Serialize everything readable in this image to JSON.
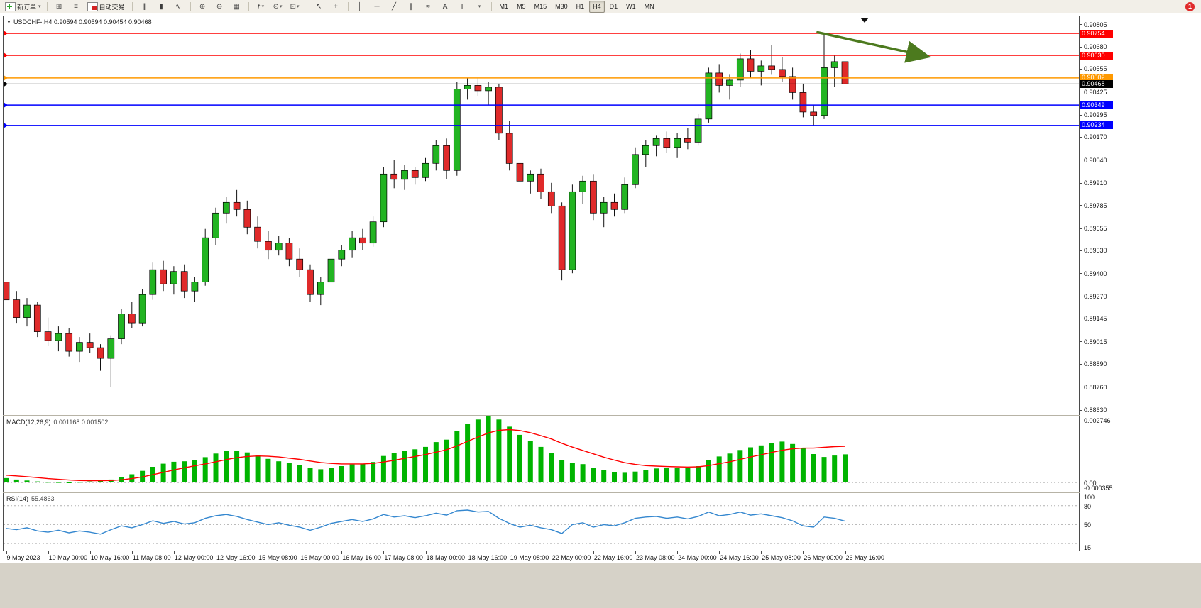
{
  "toolbar": {
    "new_order_label": "新订单",
    "autotrading_label": "自动交易",
    "badge_count": "1",
    "timeframes": [
      "M1",
      "M5",
      "M15",
      "M30",
      "H1",
      "H4",
      "D1",
      "W1",
      "MN"
    ],
    "active_timeframe": "H4",
    "icons": {
      "caret": "▾",
      "new_chart": "⊞",
      "profiles": "≡",
      "bar_chart": "|||",
      "candlestick_chart": "▮",
      "line_chart": "∿",
      "zoom_in": "⊕",
      "zoom_out": "⊖",
      "tile_windows": "▦",
      "indicators": "ƒ",
      "periods": "⊙",
      "templates": "⊡",
      "cursor": "↖",
      "crosshair": "+",
      "vertical_line": "│",
      "horizontal_line": "─",
      "trendline": "╱",
      "channel": "∥",
      "fibonacci": "≈",
      "text": "A",
      "text_label": "T",
      "objects_list": "▾"
    }
  },
  "chart": {
    "collapse_marker": "▼",
    "title": "USDCHF-,H4 0.90594 0.90594 0.90454 0.90468"
  },
  "chart_data": {
    "type": "candlestick",
    "symbol": "USDCHF-",
    "timeframe": "H4",
    "current_bar": {
      "open": 0.90594,
      "high": 0.90594,
      "low": 0.90454,
      "close": 0.90468
    },
    "y_range": [
      0.886,
      0.9085
    ],
    "price_axis_labels": [
      "0.90805",
      "0.90680",
      "0.90555",
      "0.90425",
      "0.90295",
      "0.90170",
      "0.90040",
      "0.89910",
      "0.89785",
      "0.89655",
      "0.89530",
      "0.89400",
      "0.89270",
      "0.89145",
      "0.89015",
      "0.88890",
      "0.88760",
      "0.88630"
    ],
    "time_labels": [
      "9 May 2023",
      "10 May 00:00",
      "10 May 16:00",
      "11 May 08:00",
      "12 May 00:00",
      "12 May 16:00",
      "15 May 08:00",
      "16 May 00:00",
      "16 May 16:00",
      "17 May 08:00",
      "18 May 00:00",
      "18 May 16:00",
      "19 May 08:00",
      "22 May 00:00",
      "22 May 16:00",
      "23 May 08:00",
      "24 May 00:00",
      "24 May 16:00",
      "25 May 08:00",
      "26 May 00:00",
      "26 May 16:00"
    ],
    "label_every_n_candles": 4,
    "colors": {
      "bull": "#22b422",
      "bear": "#e02a2a",
      "wick": "#111111"
    },
    "candles": [
      [
        0.8935,
        0.8948,
        0.8921,
        0.8925
      ],
      [
        0.8925,
        0.893,
        0.8912,
        0.8915
      ],
      [
        0.8915,
        0.8926,
        0.891,
        0.8922
      ],
      [
        0.8922,
        0.8924,
        0.8904,
        0.8907
      ],
      [
        0.8907,
        0.8915,
        0.8899,
        0.8902
      ],
      [
        0.8902,
        0.891,
        0.8896,
        0.8906
      ],
      [
        0.8906,
        0.8909,
        0.8893,
        0.8896
      ],
      [
        0.8896,
        0.8904,
        0.889,
        0.8901
      ],
      [
        0.8901,
        0.8906,
        0.8895,
        0.8898
      ],
      [
        0.8898,
        0.89,
        0.8885,
        0.8892
      ],
      [
        0.8892,
        0.8905,
        0.8876,
        0.8903
      ],
      [
        0.8903,
        0.892,
        0.89,
        0.8917
      ],
      [
        0.8917,
        0.8924,
        0.8909,
        0.8912
      ],
      [
        0.8912,
        0.8931,
        0.891,
        0.8928
      ],
      [
        0.8928,
        0.8946,
        0.8925,
        0.8942
      ],
      [
        0.8942,
        0.8947,
        0.893,
        0.8934
      ],
      [
        0.8934,
        0.8944,
        0.8928,
        0.8941
      ],
      [
        0.8941,
        0.8945,
        0.8926,
        0.893
      ],
      [
        0.893,
        0.8938,
        0.8924,
        0.8935
      ],
      [
        0.8935,
        0.8965,
        0.8933,
        0.896
      ],
      [
        0.896,
        0.8977,
        0.8956,
        0.8974
      ],
      [
        0.8974,
        0.8983,
        0.8968,
        0.898
      ],
      [
        0.898,
        0.8987,
        0.8972,
        0.8976
      ],
      [
        0.8976,
        0.8981,
        0.8962,
        0.8966
      ],
      [
        0.8966,
        0.8972,
        0.8954,
        0.8958
      ],
      [
        0.8958,
        0.8964,
        0.8948,
        0.8953
      ],
      [
        0.8953,
        0.8961,
        0.895,
        0.8957
      ],
      [
        0.8957,
        0.896,
        0.8944,
        0.8948
      ],
      [
        0.8948,
        0.8954,
        0.8938,
        0.8942
      ],
      [
        0.8942,
        0.8945,
        0.8924,
        0.8928
      ],
      [
        0.8928,
        0.8938,
        0.8922,
        0.8935
      ],
      [
        0.8935,
        0.8952,
        0.8933,
        0.8948
      ],
      [
        0.8948,
        0.8956,
        0.8944,
        0.8953
      ],
      [
        0.8953,
        0.8964,
        0.8949,
        0.896
      ],
      [
        0.896,
        0.8965,
        0.8953,
        0.8957
      ],
      [
        0.8957,
        0.8972,
        0.8955,
        0.8969
      ],
      [
        0.8969,
        0.9,
        0.8966,
        0.8996
      ],
      [
        0.8996,
        0.9004,
        0.8988,
        0.8993
      ],
      [
        0.8993,
        0.9001,
        0.8987,
        0.8998
      ],
      [
        0.8998,
        0.9,
        0.899,
        0.8994
      ],
      [
        0.8994,
        0.9005,
        0.8992,
        0.9002
      ],
      [
        0.9002,
        0.9015,
        0.8998,
        0.9012
      ],
      [
        0.9012,
        0.9016,
        0.8993,
        0.8998
      ],
      [
        0.8998,
        0.9048,
        0.8995,
        0.9044
      ],
      [
        0.9044,
        0.905,
        0.9038,
        0.9046
      ],
      [
        0.9046,
        0.905,
        0.904,
        0.9043
      ],
      [
        0.9043,
        0.9048,
        0.9035,
        0.9045
      ],
      [
        0.9045,
        0.9047,
        0.9015,
        0.9019
      ],
      [
        0.9019,
        0.9026,
        0.8998,
        0.9002
      ],
      [
        0.9002,
        0.9008,
        0.8988,
        0.8992
      ],
      [
        0.8992,
        0.8998,
        0.8985,
        0.8996
      ],
      [
        0.8996,
        0.8999,
        0.8982,
        0.8986
      ],
      [
        0.8986,
        0.8991,
        0.8974,
        0.8978
      ],
      [
        0.8978,
        0.898,
        0.8936,
        0.8942
      ],
      [
        0.8942,
        0.899,
        0.894,
        0.8986
      ],
      [
        0.8986,
        0.8995,
        0.8979,
        0.8992
      ],
      [
        0.8992,
        0.8996,
        0.897,
        0.8974
      ],
      [
        0.8974,
        0.8983,
        0.8966,
        0.898
      ],
      [
        0.898,
        0.8985,
        0.8972,
        0.8976
      ],
      [
        0.8976,
        0.8994,
        0.8974,
        0.899
      ],
      [
        0.899,
        0.9011,
        0.8988,
        0.9007
      ],
      [
        0.9007,
        0.9015,
        0.9,
        0.9012
      ],
      [
        0.9012,
        0.9018,
        0.9006,
        0.9016
      ],
      [
        0.9016,
        0.902,
        0.9008,
        0.9011
      ],
      [
        0.9011,
        0.9019,
        0.9005,
        0.9016
      ],
      [
        0.9016,
        0.9022,
        0.901,
        0.9014
      ],
      [
        0.9014,
        0.903,
        0.9012,
        0.9027
      ],
      [
        0.9027,
        0.9056,
        0.9025,
        0.9053
      ],
      [
        0.9053,
        0.9058,
        0.9042,
        0.9046
      ],
      [
        0.9046,
        0.9052,
        0.9038,
        0.9049
      ],
      [
        0.9049,
        0.9064,
        0.9045,
        0.9061
      ],
      [
        0.9061,
        0.9066,
        0.905,
        0.9054
      ],
      [
        0.9054,
        0.906,
        0.9046,
        0.9057
      ],
      [
        0.9057,
        0.90687,
        0.9052,
        0.9055
      ],
      [
        0.9055,
        0.9062,
        0.9048,
        0.9051
      ],
      [
        0.9051,
        0.9056,
        0.9038,
        0.9042
      ],
      [
        0.9042,
        0.9047,
        0.9028,
        0.9031
      ],
      [
        0.9031,
        0.9035,
        0.90234,
        0.9029
      ],
      [
        0.9029,
        0.90754,
        0.9027,
        0.9056
      ],
      [
        0.9056,
        0.9063,
        0.9045,
        0.90594
      ],
      [
        0.90594,
        0.90594,
        0.90454,
        0.90468
      ]
    ],
    "hlines": [
      {
        "name": "resistance-line-upper",
        "price": 0.90754,
        "label": "0.90754",
        "color": "#ff0000"
      },
      {
        "name": "resistance-line-lower",
        "price": 0.9063,
        "label": "0.90630",
        "color": "#ff0000"
      },
      {
        "name": "pivot-line-orange",
        "price": 0.90502,
        "label": "0.90502",
        "color": "#ff9900"
      },
      {
        "name": "current-price-line",
        "price": 0.90468,
        "label": "0.90468",
        "color": "#000000",
        "current": true
      },
      {
        "name": "support-line-upper",
        "price": 0.90349,
        "label": "0.90349",
        "color": "#0000ff"
      },
      {
        "name": "support-line-lower",
        "price": 0.90234,
        "label": "0.90234",
        "color": "#0000ff"
      }
    ],
    "trend_arrow": {
      "x1_frac": 0.756,
      "price1": 0.90761,
      "x2_frac": 0.858,
      "price2": 0.90625,
      "color": "#4c7a1e"
    },
    "indicators": {
      "macd": {
        "label": "MACD(12,26,9)",
        "values_label": "0.001168 0.001502",
        "y_range": [
          -0.000355,
          0.002746
        ],
        "axis_labels": [
          {
            "text": "0.002746",
            "value": 0.002746
          },
          {
            "text": "0.00",
            "value": 0
          },
          {
            "text": "-0.000355",
            "value": -0.000355
          }
        ],
        "histogram_color": "#00b400",
        "signal_color": "#ff0000",
        "main": [
          0.00018,
          0.00012,
          8e-05,
          4e-05,
          2e-05,
          1e-05,
          0.0,
          2e-05,
          4e-05,
          6e-05,
          0.00012,
          0.00022,
          0.00034,
          0.00048,
          0.00065,
          0.00078,
          0.00086,
          0.00088,
          0.00092,
          0.00105,
          0.0012,
          0.0013,
          0.00132,
          0.00125,
          0.00112,
          0.00098,
          0.00088,
          0.0008,
          0.00072,
          0.0006,
          0.00055,
          0.0006,
          0.00068,
          0.00075,
          0.00078,
          0.00085,
          0.0011,
          0.00122,
          0.00132,
          0.00138,
          0.00148,
          0.00168,
          0.00178,
          0.00215,
          0.00245,
          0.00262,
          0.00275,
          0.00262,
          0.00232,
          0.00198,
          0.00172,
          0.00148,
          0.00122,
          0.00092,
          0.00082,
          0.00076,
          0.00062,
          0.00052,
          0.00044,
          0.0004,
          0.00045,
          0.00052,
          0.00058,
          0.0006,
          0.00062,
          0.0006,
          0.00068,
          0.00092,
          0.00108,
          0.0012,
          0.00135,
          0.00146,
          0.00154,
          0.00164,
          0.0017,
          0.0016,
          0.00142,
          0.00118,
          0.00106,
          0.00112,
          0.001168
        ],
        "signal": [
          0.0003,
          0.00027,
          0.00024,
          0.0002,
          0.00016,
          0.00013,
          0.0001,
          8e-05,
          7e-05,
          7e-05,
          8e-05,
          0.00011,
          0.00016,
          0.00023,
          0.00032,
          0.00042,
          0.00052,
          0.00061,
          0.00069,
          0.00077,
          0.00086,
          0.00095,
          0.00103,
          0.00108,
          0.0011,
          0.00109,
          0.00106,
          0.00101,
          0.00096,
          0.00089,
          0.00083,
          0.00079,
          0.00077,
          0.00077,
          0.00077,
          0.00079,
          0.00085,
          0.00092,
          0.001,
          0.00108,
          0.00116,
          0.00126,
          0.00136,
          0.00152,
          0.00171,
          0.00189,
          0.00206,
          0.00217,
          0.0022,
          0.00216,
          0.00207,
          0.00195,
          0.00181,
          0.00163,
          0.00147,
          0.00133,
          0.00119,
          0.00105,
          0.00093,
          0.00082,
          0.00075,
          0.0007,
          0.00068,
          0.00066,
          0.00065,
          0.00064,
          0.00065,
          0.0007,
          0.00078,
          0.00086,
          0.00096,
          0.00106,
          0.00115,
          0.00125,
          0.00134,
          0.0014,
          0.00143,
          0.00143,
          0.00146,
          0.00149,
          0.001502
        ]
      },
      "rsi": {
        "label": "RSI(14)",
        "value_label": "55.4863",
        "y_range": [
          10,
          100
        ],
        "levels": [
          80,
          50,
          20
        ],
        "axis_labels": [
          {
            "text": "100",
            "value": 100
          },
          {
            "text": "80",
            "value": 80
          },
          {
            "text": "50",
            "value": 50
          },
          {
            "text": "15",
            "value": 15
          }
        ],
        "line_color": "#3487cf",
        "values": [
          44,
          42,
          45,
          40,
          38,
          41,
          37,
          40,
          38,
          35,
          42,
          48,
          45,
          50,
          56,
          52,
          55,
          51,
          53,
          60,
          64,
          66,
          63,
          58,
          54,
          50,
          53,
          49,
          46,
          41,
          46,
          52,
          55,
          58,
          55,
          59,
          66,
          62,
          64,
          61,
          64,
          68,
          65,
          72,
          73,
          70,
          71,
          60,
          52,
          46,
          49,
          45,
          42,
          36,
          50,
          53,
          46,
          50,
          48,
          53,
          60,
          62,
          63,
          60,
          62,
          59,
          63,
          70,
          64,
          66,
          70,
          65,
          67,
          64,
          61,
          56,
          48,
          46,
          62,
          60,
          55.4863
        ]
      }
    }
  }
}
